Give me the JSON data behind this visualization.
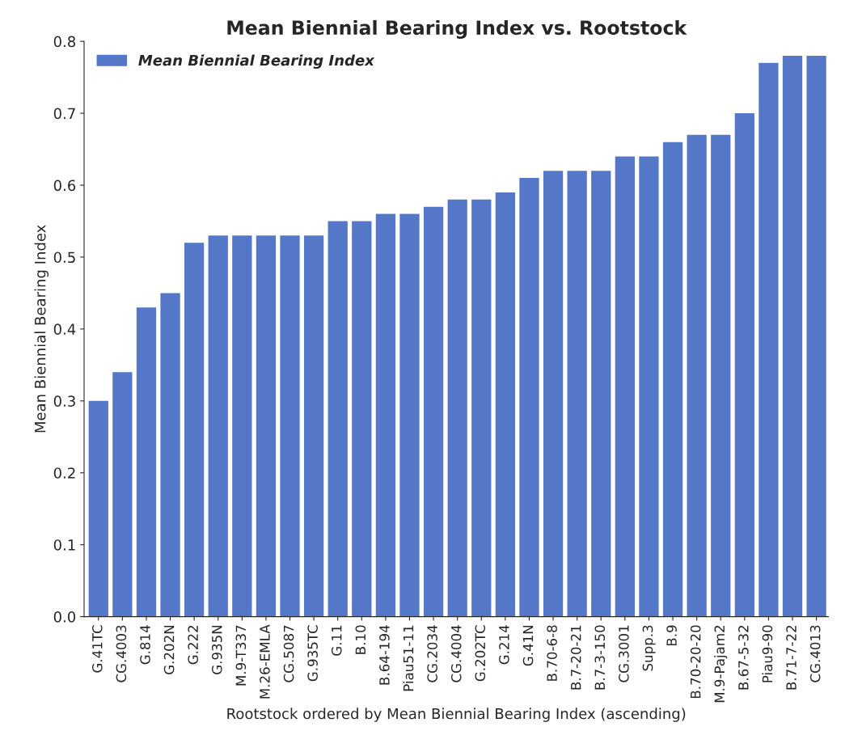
{
  "chart_data": {
    "type": "bar",
    "title": "Mean Biennial Bearing Index vs. Rootstock",
    "xlabel": "Rootstock ordered by Mean Biennial Bearing Index (ascending)",
    "ylabel": "Mean Biennial Bearing Index",
    "categories": [
      "G.41TC",
      "CG.4003",
      "G.814",
      "G.202N",
      "G.222",
      "G.935N",
      "M.9-T337",
      "M.26-EMLA",
      "CG.5087",
      "G.935TC",
      "G.11",
      "B.10",
      "B.64-194",
      "Piau51-11",
      "CG.2034",
      "CG.4004",
      "G.202TC",
      "G.214",
      "G.41N",
      "B.70-6-8",
      "B.7-20-21",
      "B.7-3-150",
      "CG.3001",
      "Supp.3",
      "B.9",
      "B.70-20-20",
      "M.9-Pajam2",
      "B.67-5-32",
      "Piau9-90",
      "B.71-7-22",
      "CG.4013"
    ],
    "series": [
      {
        "name": "Mean Biennial Bearing Index",
        "color": "#5577c8",
        "values": [
          0.3,
          0.34,
          0.43,
          0.45,
          0.52,
          0.53,
          0.53,
          0.53,
          0.53,
          0.53,
          0.55,
          0.55,
          0.56,
          0.56,
          0.57,
          0.58,
          0.58,
          0.59,
          0.61,
          0.62,
          0.62,
          0.62,
          0.64,
          0.64,
          0.66,
          0.67,
          0.67,
          0.7,
          0.77,
          0.78,
          0.78
        ]
      }
    ],
    "ylim": [
      0,
      0.8
    ],
    "yticks": [
      {
        "value": 0,
        "label": "0.0"
      },
      0.1,
      0.2,
      0.3,
      0.4,
      0.5,
      0.6,
      0.7,
      0.8
    ],
    "legend": "top left",
    "grid": false
  }
}
